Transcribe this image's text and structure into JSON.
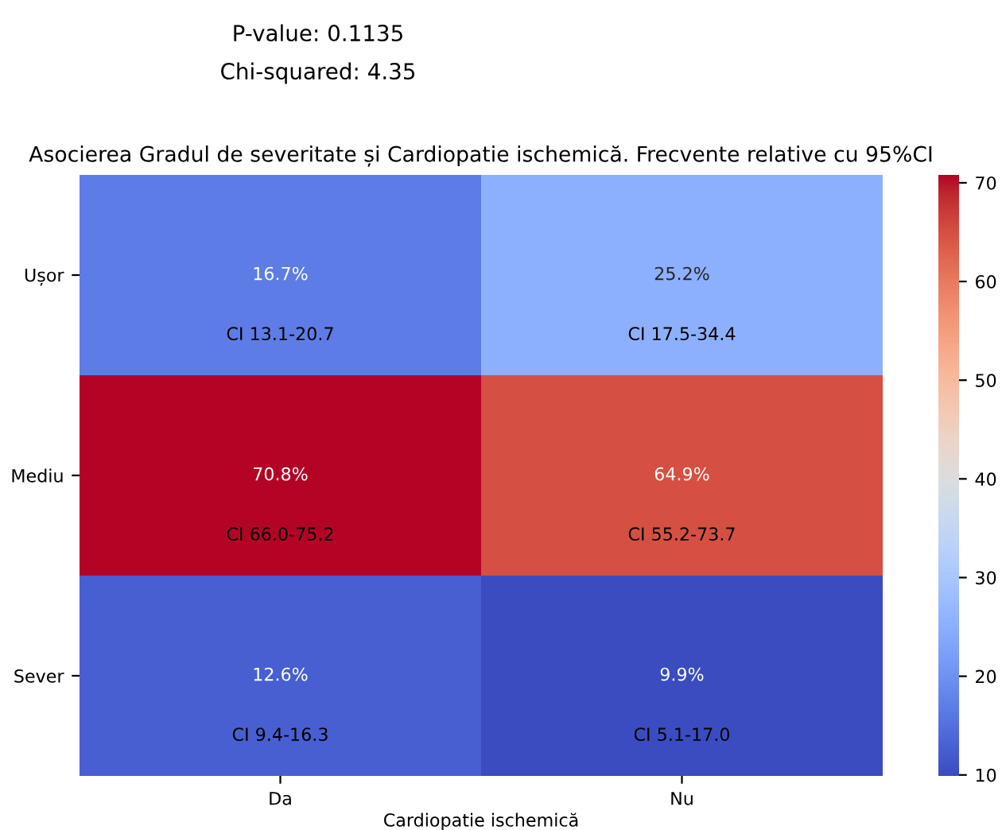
{
  "chart_data": {
    "type": "heatmap",
    "title": "Asocierea Gradul de severitate și Cardiopatie ischemică. Frecvente relative cu 95%CI",
    "xlabel": "Cardiopatie ischemică",
    "categories": [
      "Da",
      "Nu"
    ],
    "y_categories": [
      "Ușor",
      "Mediu",
      "Sever"
    ],
    "cells": [
      [
        16.7,
        25.2
      ],
      [
        70.8,
        64.9
      ],
      [
        12.6,
        9.9
      ]
    ],
    "cell_labels": [
      [
        "16.7%\nCI 13.1-20.7",
        "25.2%\nCI 17.5-34.4"
      ],
      [
        "70.8%\nCI 66.0-75.2",
        "64.9%\nCI 55.2-73.7"
      ],
      [
        "12.6%\nCI 9.4-16.3",
        "9.9%\nCI 5.1-17.0"
      ]
    ],
    "clim": [
      9.9,
      70.8
    ],
    "cticks": [
      10,
      20,
      30,
      40,
      50,
      60,
      70
    ],
    "annotations": [
      "P-value: 0.1135",
      "Chi-squared: 4.35"
    ]
  }
}
